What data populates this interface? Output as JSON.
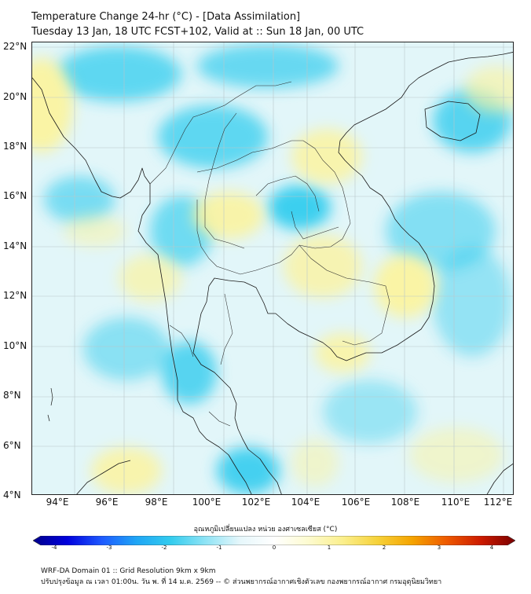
{
  "title": {
    "line1": "Temperature Change 24-hr (°C) - [Data Assimilation]",
    "line2": "Tuesday 13 Jan, 18 UTC FCST+102, Valid at :: Sun 18 Jan, 00 UTC"
  },
  "map": {
    "lat_labels": [
      "22°N",
      "20°N",
      "18°N",
      "16°N",
      "14°N",
      "12°N",
      "10°N",
      "8°N",
      "6°N",
      "4°N"
    ],
    "lon_labels": [
      "94°E",
      "96°E",
      "98°E",
      "100°E",
      "102°E",
      "104°E",
      "106°E",
      "108°E",
      "110°E",
      "112°E"
    ],
    "lat_range": [
      4,
      22
    ],
    "lon_range": [
      93,
      112.3
    ],
    "background_color": "#e2f6f9",
    "warm_color": "#fbf3a0",
    "cool_color": "#33ccee"
  },
  "colorbar": {
    "title": "อุณหภูมิเปลี่ยนแปลง หน่วย องศาเซลเซียส (°C)",
    "ticks": [
      "-4",
      "-3",
      "-2",
      "-1",
      "0",
      "1",
      "2",
      "3",
      "4"
    ],
    "range": [
      -4,
      4
    ],
    "colors": [
      "#00008b",
      "#0000dd",
      "#1e5aff",
      "#1fa5f5",
      "#33ccee",
      "#8ee3f5",
      "#e6f7fb",
      "#ffffff",
      "#fdfbd0",
      "#fbef8c",
      "#f6d23a",
      "#f5a400",
      "#ee5a00",
      "#cc1a00",
      "#7a0000"
    ]
  },
  "footer": {
    "line1": "WRF-DA Domain 01 :: Grid Resolution 9km x 9km",
    "line2": "ปรับปรุงข้อมูล ณ เวลา 01:00น. วัน พ. ที่ 14 ม.ค. 2569 -- © ส่วนพยากรณ์อากาศเชิงตัวเลข กองพยากรณ์อากาศ กรมอุตุนิยมวิทยา"
  }
}
